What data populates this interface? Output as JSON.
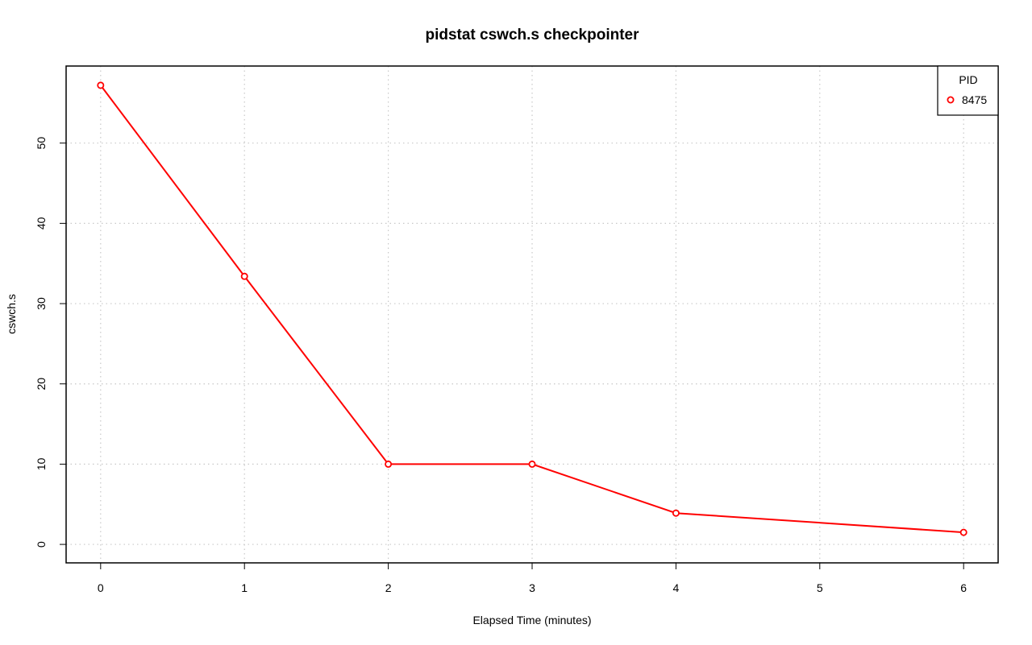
{
  "chart_data": {
    "type": "line",
    "title": "pidstat cswch.s checkpointer",
    "xlabel": "Elapsed Time (minutes)",
    "ylabel": "cswch.s",
    "x": [
      0,
      1,
      2,
      3,
      4,
      5,
      6
    ],
    "series": [
      {
        "name": "8475",
        "x": [
          0,
          1,
          2,
          3,
          4,
          6
        ],
        "values": [
          57.2,
          33.4,
          10.0,
          10.0,
          3.9,
          1.5
        ],
        "color": "#ff0000"
      }
    ],
    "xticks": [
      "0",
      "1",
      "2",
      "3",
      "4",
      "5",
      "6"
    ],
    "yticks": [
      "0",
      "10",
      "20",
      "30",
      "40",
      "50"
    ],
    "xlim": [
      -0.24,
      6.24
    ],
    "ylim": [
      -2.3,
      59.6
    ],
    "grid": true,
    "legend": {
      "title": "PID",
      "position": "top-right"
    }
  }
}
